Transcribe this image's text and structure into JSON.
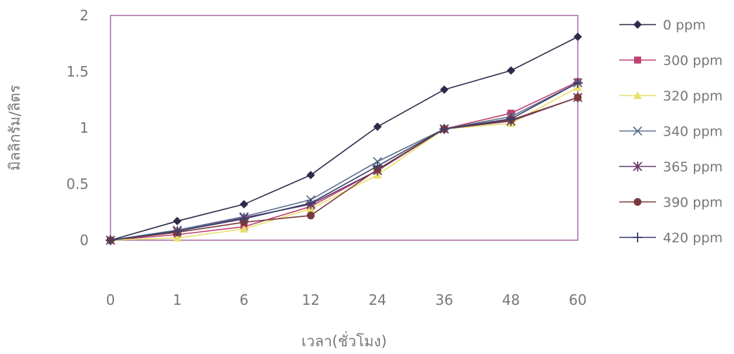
{
  "chart_data": {
    "type": "line",
    "xlabel": "เวลา(ชั่วโมง)",
    "ylabel": "มิลลิกรัม/ลิตร",
    "categories": [
      "0",
      "1",
      "6",
      "12",
      "24",
      "36",
      "48",
      "60"
    ],
    "y_ticks": [
      "0",
      "0.5",
      "1",
      "1.5",
      "2"
    ],
    "ylim": [
      0,
      2
    ],
    "grid": false,
    "legend": "right",
    "series": [
      {
        "name": "0 ppm",
        "marker": "diamond",
        "color": "#2b2b4a",
        "values": [
          0,
          0.17,
          0.32,
          0.58,
          1.01,
          1.34,
          1.51,
          1.81
        ]
      },
      {
        "name": "300 ppm",
        "marker": "square",
        "color": "#c04070",
        "values": [
          0,
          0.05,
          0.12,
          0.3,
          0.62,
          0.99,
          1.13,
          1.41
        ]
      },
      {
        "name": "320 ppm",
        "marker": "triangle",
        "color": "#e8e06a",
        "values": [
          0,
          0.02,
          0.1,
          0.28,
          0.58,
          0.99,
          1.04,
          1.36
        ]
      },
      {
        "name": "340 ppm",
        "marker": "x",
        "color": "#5a6e8a",
        "values": [
          0,
          0.09,
          0.21,
          0.36,
          0.7,
          0.99,
          1.1,
          1.4
        ]
      },
      {
        "name": "365 ppm",
        "marker": "star",
        "color": "#6a3a6e",
        "values": [
          0,
          0.08,
          0.2,
          0.32,
          0.62,
          0.99,
          1.06,
          1.27
        ]
      },
      {
        "name": "390 ppm",
        "marker": "circle",
        "color": "#7a3a3a",
        "values": [
          0,
          0.07,
          0.16,
          0.22,
          0.63,
          0.99,
          1.07,
          1.27
        ]
      },
      {
        "name": "420 ppm",
        "marker": "plus",
        "color": "#3a3f6a",
        "values": [
          0,
          0.08,
          0.19,
          0.33,
          0.66,
          0.99,
          1.08,
          1.4
        ]
      }
    ]
  }
}
